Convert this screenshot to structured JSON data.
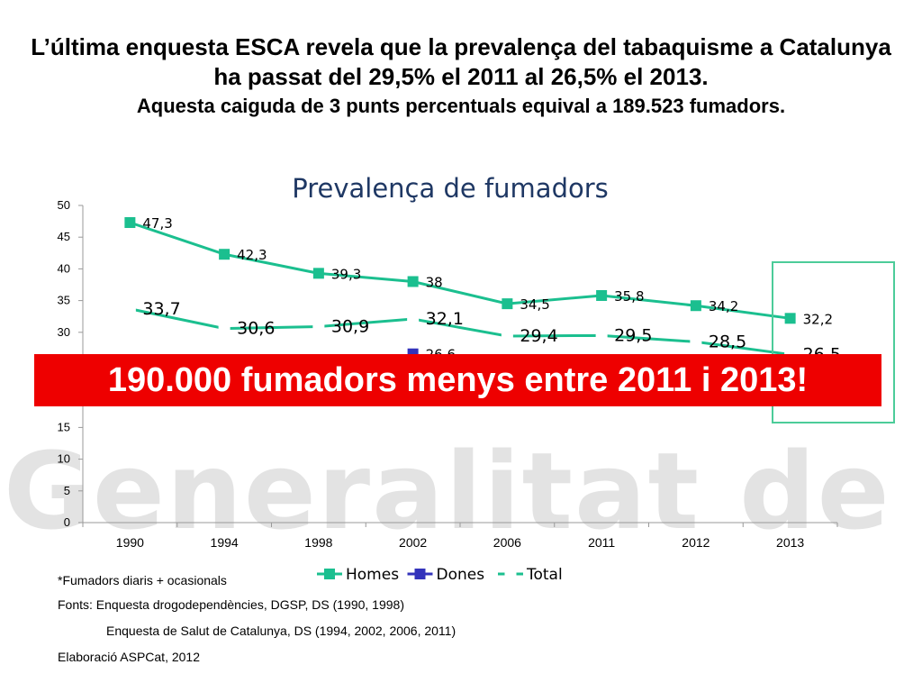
{
  "watermark": "Generalitat de Catalu",
  "heading": {
    "line1": "L’última enquesta ESCA revela que la prevalença del tabaquisme a Catalunya ha passat del 29,5% el 2011 al 26,5% el 2013.",
    "line2": "Aquesta caiguda de 3 punts percentuals equival a 189.523 fumadors."
  },
  "banner": "190.000 fumadors menys entre 2011 i 2013!",
  "notes": {
    "footnote": "*Fumadors diaris + ocasionals",
    "fonts1": "Fonts: Enquesta drogodependències, DGSP, DS (1990, 1998)",
    "fonts2": "Enquesta de Salut de Catalunya, DS (1994, 2002, 2006, 2011)",
    "elaboracio": "Elaboració  ASPCat, 2012"
  },
  "colors": {
    "homes": "#1bbf8f",
    "dones": "#3333bb",
    "total": "#1bbf8f",
    "title": "#1f3864",
    "banner": "#ee0000"
  },
  "chart_data": {
    "type": "line",
    "title": "Prevalença de fumadors",
    "categories": [
      "1990",
      "1994",
      "1998",
      "2002",
      "2006",
      "2011",
      "2012",
      "2013"
    ],
    "ylim": [
      0,
      50
    ],
    "yticks": [
      0,
      5,
      10,
      15,
      20,
      25,
      30,
      35,
      40,
      45,
      50
    ],
    "grid": false,
    "legend": "bottom",
    "series": [
      {
        "name": "Homes",
        "values": [
          47.3,
          42.3,
          39.3,
          38,
          34.5,
          35.8,
          34.2,
          32.2
        ],
        "labels": [
          "47,3",
          "42,3",
          "39,3",
          "38",
          "34,5",
          "35,8",
          "34,2",
          "32,2"
        ]
      },
      {
        "name": "Dones",
        "values": [
          null,
          null,
          null,
          26.6,
          null,
          null,
          null,
          null
        ],
        "labels": [
          "",
          "",
          "",
          "26,6",
          "",
          "",
          "",
          ""
        ]
      },
      {
        "name": "Total",
        "values": [
          33.7,
          30.6,
          30.9,
          32.1,
          29.4,
          29.5,
          28.5,
          26.5
        ],
        "labels": [
          "33,7",
          "30,6",
          "30,9",
          "32,1",
          "29,4",
          "29,5",
          "28,5",
          "26,5"
        ]
      }
    ]
  }
}
